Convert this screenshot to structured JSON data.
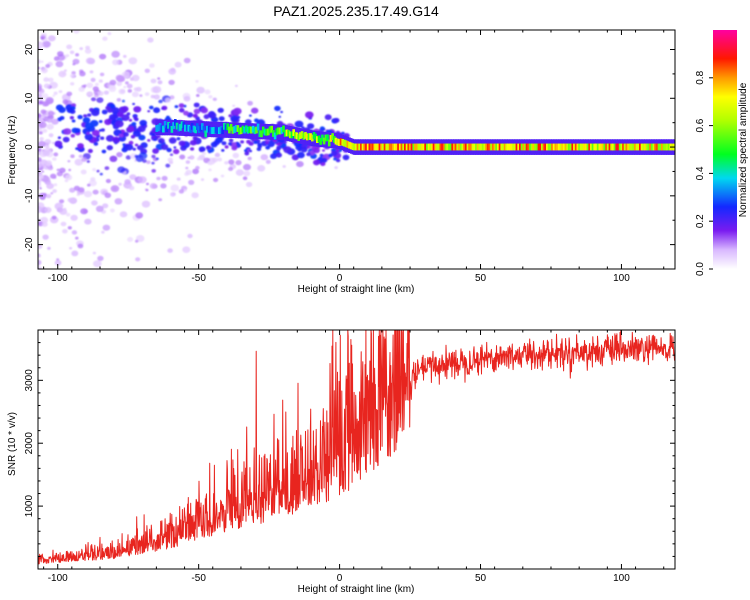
{
  "figure": {
    "title": "PAZ1.2025.235.17.49.G14"
  },
  "chart_data": [
    {
      "type": "heatmap",
      "xlabel": "Height of straight line (km)",
      "ylabel": "Frequency (Hz)",
      "xlim": [
        -107,
        119
      ],
      "ylim": [
        -25,
        24
      ],
      "xticks": [
        -100,
        -50,
        0,
        50,
        100
      ],
      "yticks": [
        -20,
        -10,
        0,
        10,
        20
      ],
      "colorbar": {
        "label": "Normalized spectral amplitude",
        "range": [
          0,
          1
        ],
        "ticks": [
          0.0,
          0.2,
          0.4,
          0.6,
          0.8
        ],
        "colormap": "rainbow (white-violet-blue-cyan-green-yellow-red-magenta)"
      },
      "ridge": {
        "description": "narrow high-amplitude band near 0 Hz",
        "points": [
          {
            "x": -60,
            "y": 4
          },
          {
            "x": -40,
            "y": 3.5
          },
          {
            "x": -20,
            "y": 3
          },
          {
            "x": -10,
            "y": 1.8
          },
          {
            "x": 0,
            "y": 1.2
          },
          {
            "x": 5,
            "y": 0
          },
          {
            "x": 20,
            "y": 0
          },
          {
            "x": 119,
            "y": 0
          }
        ]
      }
    },
    {
      "type": "line",
      "xlabel": "Height of straight line (km)",
      "ylabel": "SNR (10 * v/v)",
      "xlim": [
        -107,
        119
      ],
      "ylim": [
        0,
        3800
      ],
      "xticks": [
        -100,
        -50,
        0,
        50,
        100
      ],
      "yticks": [
        1000,
        2000,
        3000
      ],
      "series": [
        {
          "color": "#e8251f",
          "envelope": [
            {
              "x": -107,
              "y": 120
            },
            {
              "x": -80,
              "y": 250
            },
            {
              "x": -60,
              "y": 500
            },
            {
              "x": -40,
              "y": 900
            },
            {
              "x": -20,
              "y": 1250
            },
            {
              "x": 0,
              "y": 1750
            },
            {
              "x": 10,
              "y": 2250
            },
            {
              "x": 20,
              "y": 2800
            },
            {
              "x": 30,
              "y": 3200
            },
            {
              "x": 50,
              "y": 3350
            },
            {
              "x": 70,
              "y": 3420
            },
            {
              "x": 100,
              "y": 3480
            },
            {
              "x": 119,
              "y": 3500
            }
          ]
        }
      ]
    }
  ]
}
